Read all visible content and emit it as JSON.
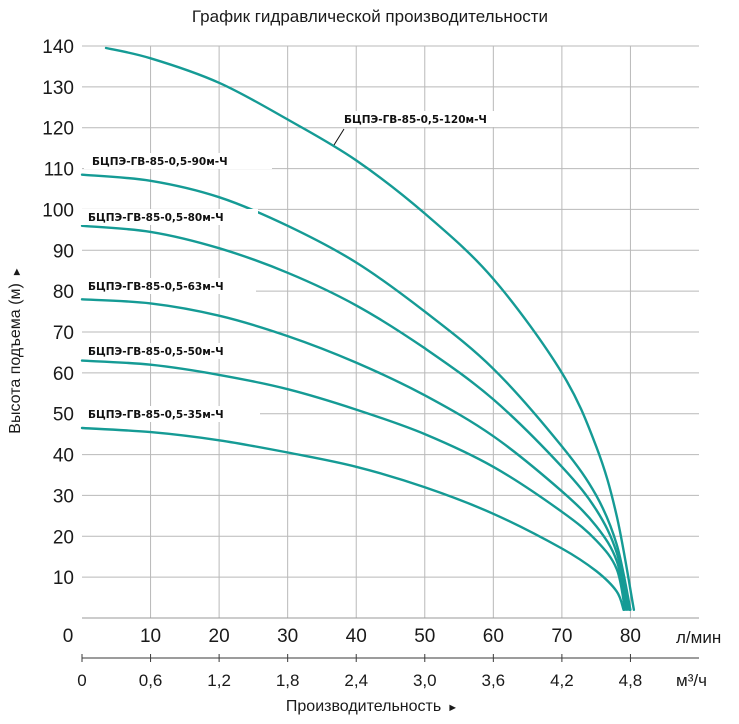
{
  "chart_data": {
    "type": "line",
    "title": "График гидравлической производительности",
    "ylabel": "Высота подъема (м)",
    "xlabel": "Производительность",
    "x_unit_primary": "л/мин",
    "x_unit_secondary": "м³/ч",
    "xlim": [
      0,
      90
    ],
    "ylim": [
      0,
      140
    ],
    "x_ticks_primary": [
      "0",
      "10",
      "20",
      "30",
      "40",
      "50",
      "60",
      "70",
      "80"
    ],
    "x_ticks_secondary": [
      "0",
      "0,6",
      "1,2",
      "1,8",
      "2,4",
      "3,0",
      "3,6",
      "4,2",
      "4,8"
    ],
    "y_ticks": [
      "10",
      "20",
      "30",
      "40",
      "50",
      "60",
      "70",
      "80",
      "90",
      "100",
      "110",
      "120",
      "130",
      "140"
    ],
    "grid": true,
    "line_color": "#159b95",
    "series": [
      {
        "name": "БЦПЭ-ГВ-85-0,5-120м-Ч",
        "x": [
          3.5,
          10,
          20,
          30,
          40,
          50,
          60,
          70,
          75,
          78,
          80.5
        ],
        "y": [
          139.5,
          137,
          131,
          122,
          112,
          99,
          83,
          60,
          42,
          25,
          2
        ]
      },
      {
        "name": "БЦПЭ-ГВ-85-0,5-90м-Ч",
        "x": [
          0,
          10,
          20,
          30,
          40,
          50,
          60,
          70,
          75,
          78,
          80
        ],
        "y": [
          108.5,
          107,
          103,
          96,
          87,
          75,
          61,
          42,
          30,
          18,
          2
        ]
      },
      {
        "name": "БЦПЭ-ГВ-85-0,5-80м-Ч",
        "x": [
          0,
          10,
          20,
          30,
          40,
          50,
          60,
          70,
          75,
          78,
          79.8
        ],
        "y": [
          96,
          94.5,
          90.5,
          84.5,
          76.5,
          66,
          53.5,
          37,
          26.5,
          16,
          2
        ]
      },
      {
        "name": "БЦПЭ-ГВ-85-0,5-63м-Ч",
        "x": [
          0,
          10,
          20,
          30,
          40,
          50,
          60,
          70,
          75,
          78,
          79.5
        ],
        "y": [
          78,
          77,
          74,
          69,
          62.5,
          54.5,
          44.5,
          31,
          22.5,
          14,
          2
        ]
      },
      {
        "name": "БЦПЭ-ГВ-85-0,5-50м-Ч",
        "x": [
          0,
          10,
          20,
          30,
          40,
          50,
          60,
          70,
          75,
          78,
          79.2
        ],
        "y": [
          63,
          62,
          59.5,
          56,
          51,
          45,
          37,
          26,
          19,
          12,
          2
        ]
      },
      {
        "name": "БЦПЭ-ГВ-85-0,5-35м-Ч",
        "x": [
          0,
          10,
          20,
          30,
          40,
          50,
          60,
          70,
          75,
          78,
          79
        ],
        "y": [
          46.5,
          45.5,
          43.5,
          40.5,
          37,
          32,
          25.5,
          17,
          11.5,
          6.5,
          2
        ]
      }
    ]
  }
}
